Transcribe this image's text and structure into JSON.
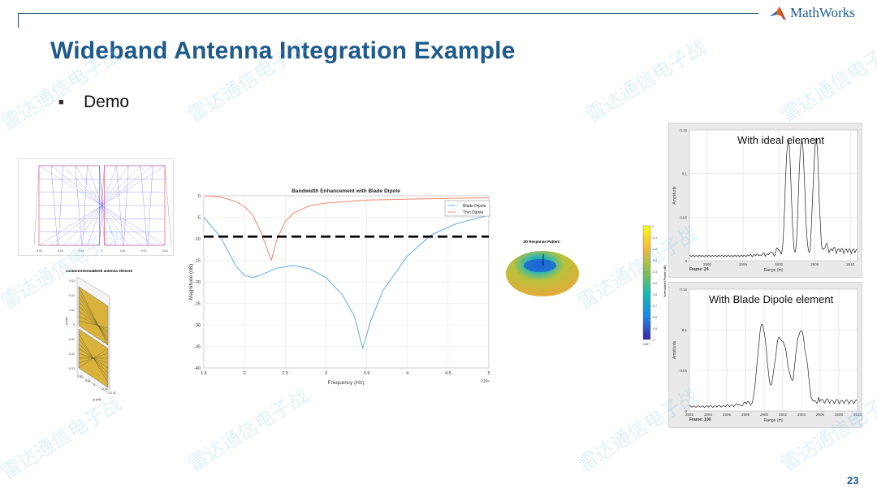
{
  "slide": {
    "title": "Wideband Antenna Integration Example",
    "bullet": "Demo",
    "page_number": "23",
    "logo_text": "MathWorks",
    "watermark": "雷达通信电子战",
    "accent_color": "#1f5a8c"
  },
  "mesh_figure": {
    "x_ticks": [
      "-0.03",
      "-0.02",
      "-0.01",
      "0",
      "0.01",
      "0.02",
      "0.03"
    ],
    "edge_color": "#6b6bff",
    "boundary_color": "#ff6b6b"
  },
  "antenna_3d": {
    "title": "customAntennaMesh antenna element",
    "z_ticks": [
      "0.03",
      "0.02",
      "0.01",
      "0",
      "-0.01",
      "-0.02",
      "-0.03"
    ],
    "y_label": "y (m)",
    "z_label": "z (m)",
    "y_ticks": [
      "0.02",
      "0.01",
      "0",
      "-0.01",
      "-0.02"
    ],
    "fill_color": "#d8b23a"
  },
  "chart_data": [
    {
      "type": "line",
      "title": "Bandwidth Enhancement with Blade Dipole",
      "xlabel": "Frequency (Hz)",
      "ylabel": "Magnitude (dB)",
      "x_exponent": "×10⁹",
      "xlim": [
        1.5,
        5
      ],
      "ylim": [
        -40,
        0
      ],
      "x_ticks": [
        "1.5",
        "2",
        "2.5",
        "3",
        "3.5",
        "4",
        "4.5",
        "5"
      ],
      "y_ticks": [
        "0",
        "-5",
        "-10",
        "-15",
        "-20",
        "-25",
        "-30",
        "-35",
        "-40"
      ],
      "grid": true,
      "legend": "top-right",
      "threshold_db": -9.5,
      "series": [
        {
          "name": "Blade Dipole",
          "color": "#6fb2e6",
          "x": [
            1.5,
            1.6,
            1.7,
            1.8,
            1.9,
            2.0,
            2.1,
            2.2,
            2.4,
            2.6,
            2.8,
            3.0,
            3.2,
            3.35,
            3.45,
            3.55,
            3.7,
            4.0,
            4.3,
            4.6,
            5.0
          ],
          "y": [
            -5,
            -7.2,
            -9.5,
            -13,
            -16.5,
            -18.5,
            -19,
            -18.4,
            -16.8,
            -16.2,
            -17,
            -19,
            -23,
            -28,
            -35.5,
            -29,
            -22,
            -14,
            -9,
            -6.5,
            -4.5
          ]
        },
        {
          "name": "Thin Dipole",
          "color": "#f0907a",
          "x": [
            1.5,
            1.7,
            1.8,
            1.9,
            2.0,
            2.1,
            2.2,
            2.27,
            2.33,
            2.4,
            2.5,
            2.6,
            2.8,
            3.0,
            3.5,
            4.0,
            4.5,
            5.0
          ],
          "y": [
            0,
            -0.3,
            -0.8,
            -1.4,
            -2.5,
            -4.5,
            -8.5,
            -12,
            -15,
            -10,
            -6,
            -4,
            -2.3,
            -1.7,
            -1.0,
            -0.8,
            -0.6,
            -0.5
          ]
        }
      ]
    },
    {
      "type": "line",
      "title": "With ideal element",
      "xlabel": "Range (m)",
      "ylabel": "Amplitude",
      "footer": "Frame: 24",
      "xlim": [
        2587.5,
        2611
      ],
      "ylim": [
        0,
        0.15
      ],
      "x_ticks": [
        "2590",
        "2595",
        "2600",
        "2605",
        "2610"
      ],
      "y_ticks": [
        "0",
        "0.05",
        "0.1",
        "0.15"
      ],
      "grid": true,
      "peaks": {
        "x": [
          2601.3,
          2603.2,
          2605.2
        ],
        "y": [
          0.13,
          0.13,
          0.13
        ]
      }
    },
    {
      "type": "line",
      "title": "With Blade Dipole element",
      "xlabel": "Range (m)",
      "ylabel": "Amplitude",
      "footer": "Frame: 100",
      "xlim": [
        2592,
        2610
      ],
      "ylim": [
        0,
        0.15
      ],
      "x_ticks": [
        "2592",
        "2594",
        "2596",
        "2598",
        "2600",
        "2602",
        "2604",
        "2606",
        "2608",
        "2610"
      ],
      "y_ticks": [
        "0",
        "0.05",
        "0.1",
        "0.15"
      ],
      "grid": true,
      "peaks": {
        "x": [
          2599.6,
          2600.2,
          2601.5,
          2602.3,
          2603.6,
          2604.3
        ],
        "y": [
          0.08,
          0.048,
          0.074,
          0.06,
          0.068,
          0.066
        ]
      }
    }
  ],
  "pattern_3d": {
    "title": "3D Response Pattern",
    "colorbar_label": "Normalized Power (dB)",
    "colorbar_ticks": [
      "0",
      "-0.1",
      "-0.2",
      "-0.3",
      "-0.4",
      "-0.5",
      "-0.6",
      "-0.7",
      "-0.8",
      "-0.9",
      "-1"
    ],
    "colorbar_exponent": "×10⁻⁴"
  }
}
